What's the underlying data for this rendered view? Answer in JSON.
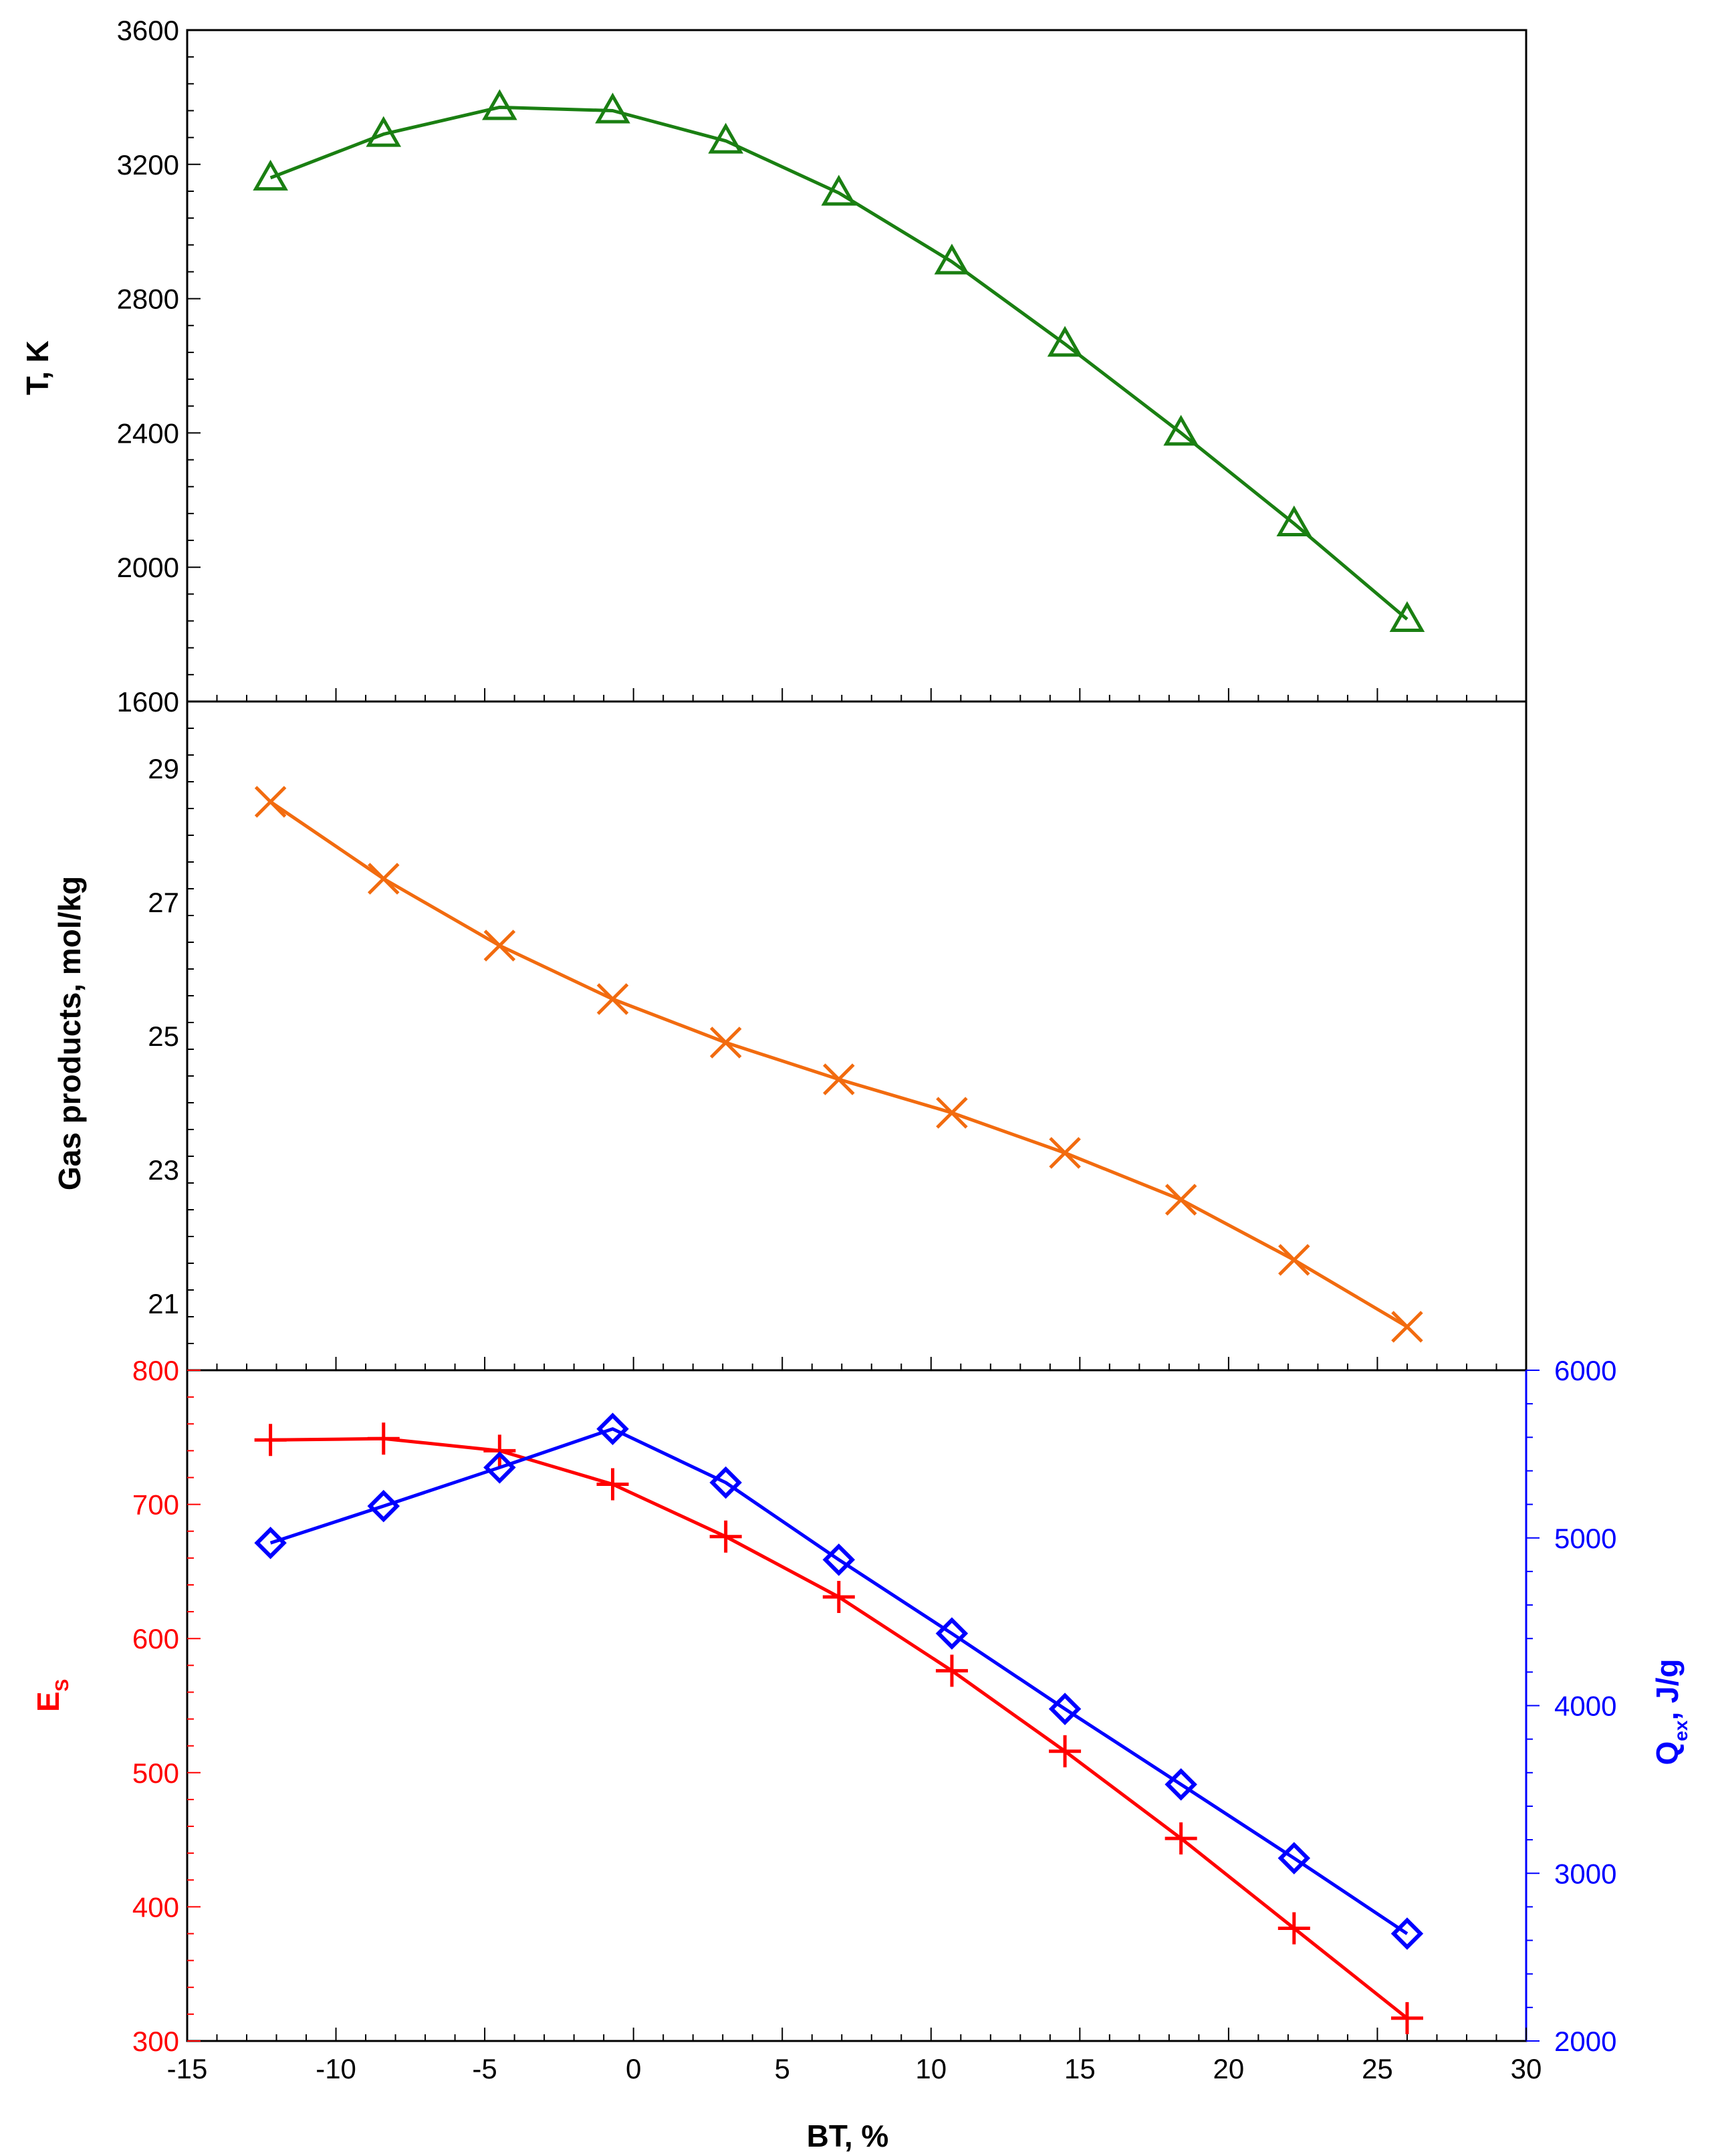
{
  "chart_data": {
    "type": "line",
    "x": [
      -12.2,
      -8.4,
      -4.5,
      -0.7,
      3.1,
      6.9,
      10.7,
      14.5,
      18.4,
      22.2,
      26.0
    ],
    "xlabel": "BT, %",
    "xlim": [
      -15,
      30
    ],
    "xticks": [
      -15,
      -10,
      -5,
      0,
      5,
      10,
      15,
      20,
      25,
      30
    ],
    "xtick_labels": [
      "-15",
      "-10",
      "-5",
      "0",
      "5",
      "10",
      "15",
      "20",
      "25",
      "30"
    ],
    "panels": [
      {
        "name": "temperature",
        "ylabel": "T, K",
        "ylim": [
          1600,
          3600
        ],
        "yticks": [
          1600,
          2000,
          2400,
          2800,
          3200,
          3600
        ],
        "ytick_labels": [
          "1600",
          "2000",
          "2400",
          "2800",
          "3200",
          "3600"
        ],
        "series": [
          {
            "name": "T",
            "marker": "triangle",
            "color": "#1a7f12",
            "values": [
              3160,
              3290,
              3370,
              3360,
              3270,
              3115,
              2910,
              2665,
              2400,
              2130,
              1845
            ]
          }
        ]
      },
      {
        "name": "gas-products",
        "ylabel": "Gas products, mol/kg",
        "ylim": [
          20,
          30
        ],
        "yticks": [
          21,
          23,
          25,
          27,
          29
        ],
        "ytick_labels": [
          "21",
          "23",
          "25",
          "27",
          "29"
        ],
        "series": [
          {
            "name": "Gas products",
            "marker": "x",
            "color": "#f26b0f",
            "values": [
              28.5,
              27.35,
              26.35,
              25.55,
              24.9,
              24.35,
              23.85,
              23.25,
              22.55,
              21.65,
              20.65
            ]
          }
        ]
      },
      {
        "name": "energy",
        "ylabel_left": "Es",
        "ylabel_left_main": "E",
        "ylabel_left_sub": "S",
        "ylim_left": [
          300,
          800
        ],
        "yticks_left": [
          300,
          400,
          500,
          600,
          700,
          800
        ],
        "ytick_labels_left": [
          "300",
          "400",
          "500",
          "600",
          "700",
          "800"
        ],
        "ylabel_right": "Qex, J/g",
        "ylabel_right_main": "Q",
        "ylabel_right_sub": "ex",
        "ylabel_right_tail": ", J/g",
        "ylim_right": [
          2000,
          6000
        ],
        "yticks_right": [
          2000,
          3000,
          4000,
          5000,
          6000
        ],
        "ytick_labels_right": [
          "2000",
          "3000",
          "4000",
          "5000",
          "6000"
        ],
        "left_color": "#ff0000",
        "right_color": "#0000ff",
        "series": [
          {
            "name": "Es",
            "axis": "left",
            "marker": "plus",
            "color": "#ff0000",
            "values": [
              748,
              749,
              740,
              715,
              676,
              631,
              576,
              516,
              451,
              384,
              317
            ]
          },
          {
            "name": "Qex",
            "axis": "right",
            "marker": "diamond",
            "color": "#0000ff",
            "values": [
              4970,
              5190,
              5420,
              5650,
              5330,
              4870,
              4430,
              3980,
              3530,
              3090,
              2640
            ]
          }
        ]
      }
    ]
  }
}
